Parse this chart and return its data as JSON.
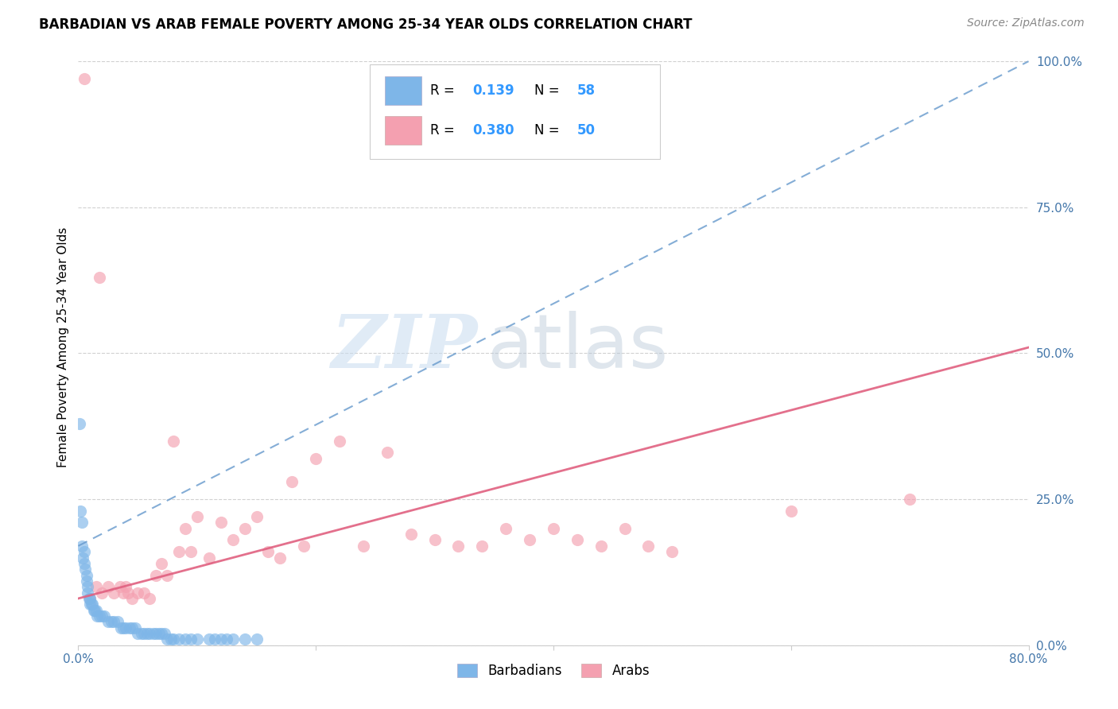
{
  "title": "BARBADIAN VS ARAB FEMALE POVERTY AMONG 25-34 YEAR OLDS CORRELATION CHART",
  "source": "Source: ZipAtlas.com",
  "ylabel": "Female Poverty Among 25-34 Year Olds",
  "xlim": [
    0.0,
    0.8
  ],
  "ylim": [
    0.0,
    1.02
  ],
  "barbadian_color": "#7EB6E8",
  "arab_color": "#F4A0B0",
  "barbadian_line_color": "#6699CC",
  "arab_line_color": "#E06080",
  "r_barbadian": 0.139,
  "n_barbadian": 58,
  "r_arab": 0.38,
  "n_arab": 50,
  "watermark_zip": "ZIP",
  "watermark_atlas": "atlas",
  "barb_line_x0": 0.0,
  "barb_line_y0": 0.17,
  "barb_line_x1": 0.8,
  "barb_line_y1": 1.0,
  "arab_line_x0": 0.0,
  "arab_line_y0": 0.08,
  "arab_line_x1": 0.8,
  "arab_line_y1": 0.51,
  "barbadian_x": [
    0.003,
    0.004,
    0.005,
    0.005,
    0.006,
    0.007,
    0.007,
    0.008,
    0.008,
    0.009,
    0.01,
    0.01,
    0.011,
    0.012,
    0.013,
    0.014,
    0.015,
    0.016,
    0.018,
    0.02,
    0.022,
    0.025,
    0.028,
    0.03,
    0.033,
    0.036,
    0.038,
    0.04,
    0.043,
    0.045,
    0.048,
    0.05,
    0.053,
    0.055,
    0.058,
    0.06,
    0.063,
    0.065,
    0.068,
    0.07,
    0.073,
    0.075,
    0.078,
    0.08,
    0.085,
    0.09,
    0.095,
    0.1,
    0.11,
    0.115,
    0.12,
    0.125,
    0.13,
    0.14,
    0.15,
    0.003,
    0.002,
    0.001
  ],
  "barbadian_y": [
    0.17,
    0.15,
    0.16,
    0.14,
    0.13,
    0.12,
    0.11,
    0.1,
    0.09,
    0.08,
    0.08,
    0.07,
    0.07,
    0.07,
    0.06,
    0.06,
    0.06,
    0.05,
    0.05,
    0.05,
    0.05,
    0.04,
    0.04,
    0.04,
    0.04,
    0.03,
    0.03,
    0.03,
    0.03,
    0.03,
    0.03,
    0.02,
    0.02,
    0.02,
    0.02,
    0.02,
    0.02,
    0.02,
    0.02,
    0.02,
    0.02,
    0.01,
    0.01,
    0.01,
    0.01,
    0.01,
    0.01,
    0.01,
    0.01,
    0.01,
    0.01,
    0.01,
    0.01,
    0.01,
    0.01,
    0.21,
    0.23,
    0.38
  ],
  "arab_x": [
    0.005,
    0.01,
    0.015,
    0.018,
    0.02,
    0.025,
    0.03,
    0.035,
    0.038,
    0.04,
    0.042,
    0.045,
    0.05,
    0.055,
    0.06,
    0.065,
    0.07,
    0.075,
    0.08,
    0.085,
    0.09,
    0.095,
    0.1,
    0.11,
    0.12,
    0.13,
    0.14,
    0.15,
    0.16,
    0.17,
    0.18,
    0.19,
    0.2,
    0.22,
    0.24,
    0.26,
    0.28,
    0.3,
    0.32,
    0.34,
    0.36,
    0.38,
    0.4,
    0.42,
    0.44,
    0.46,
    0.48,
    0.5,
    0.6,
    0.7
  ],
  "arab_y": [
    0.97,
    0.08,
    0.1,
    0.63,
    0.09,
    0.1,
    0.09,
    0.1,
    0.09,
    0.1,
    0.09,
    0.08,
    0.09,
    0.09,
    0.08,
    0.12,
    0.14,
    0.12,
    0.35,
    0.16,
    0.2,
    0.16,
    0.22,
    0.15,
    0.21,
    0.18,
    0.2,
    0.22,
    0.16,
    0.15,
    0.28,
    0.17,
    0.32,
    0.35,
    0.17,
    0.33,
    0.19,
    0.18,
    0.17,
    0.17,
    0.2,
    0.18,
    0.2,
    0.18,
    0.17,
    0.2,
    0.17,
    0.16,
    0.23,
    0.25
  ]
}
